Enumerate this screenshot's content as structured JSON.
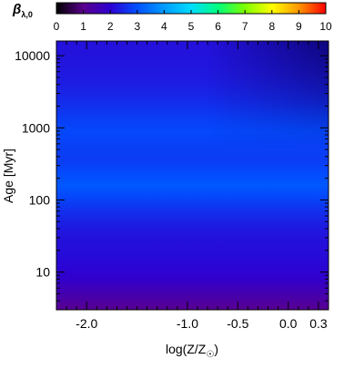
{
  "chart_data": {
    "type": "heatmap",
    "colorbar": {
      "label_symbol": "β",
      "label_subscript": "λ,0",
      "range": [
        0,
        10
      ],
      "ticks": [
        "0",
        "1",
        "2",
        "3",
        "4",
        "5",
        "6",
        "7",
        "8",
        "9",
        "10"
      ],
      "colormap": [
        "#000000",
        "#5a008c",
        "#2d00d2",
        "#0050ff",
        "#009bff",
        "#00dcff",
        "#00ff7d",
        "#7dff00",
        "#ffff00",
        "#ff9600",
        "#ff0000"
      ]
    },
    "xlabel": "log(Z/Z☉)",
    "ylabel": "Age [Myr]",
    "x_ticks": [
      "-2.0",
      "-1.0",
      "-0.5",
      "0.0",
      "0.3"
    ],
    "x_values": [
      -2.0,
      -1.0,
      -0.5,
      0.0,
      0.3
    ],
    "xlim": [
      -2.3,
      0.4
    ],
    "y_ticks": [
      "10",
      "100",
      "1000",
      "10000"
    ],
    "y_values": [
      10,
      100,
      1000,
      10000
    ],
    "ylim": [
      3,
      16000
    ],
    "y_scale": "log",
    "field_profile": {
      "log_age": [
        0.48,
        0.6,
        0.75,
        0.9,
        1.05,
        1.25,
        1.45,
        1.65,
        1.85,
        2.05,
        2.2,
        2.35,
        2.55,
        2.75,
        2.95,
        3.15,
        3.35,
        3.55,
        3.75,
        3.95,
        4.2
      ],
      "beta": [
        1.1,
        1.3,
        1.6,
        1.9,
        2.05,
        2.15,
        2.2,
        2.35,
        2.6,
        2.9,
        3.1,
        2.95,
        2.75,
        2.8,
        2.9,
        2.75,
        2.55,
        2.4,
        2.3,
        2.25,
        2.2
      ]
    },
    "upper_right_decline": 0.6
  }
}
